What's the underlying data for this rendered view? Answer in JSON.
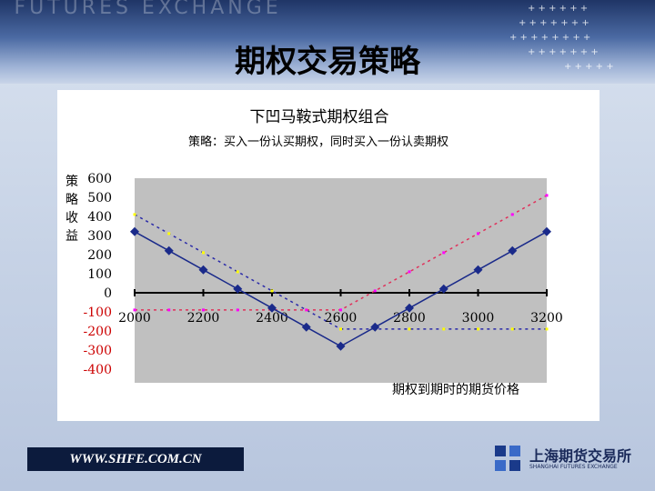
{
  "slide": {
    "banner_text": "I FUTURES EXCHANGE",
    "title": "期权交易策略",
    "footer_url": "WWW.SHFE.COM.CN",
    "logo_text": "上海期货交易所",
    "logo_subtext": "SHANGHAI FUTURES EXCHANGE"
  },
  "chart_data": {
    "type": "line",
    "title": "下凹马鞍式期权组合",
    "subtitle": "策略：买入一份认买期权，同时买入一份认卖期权",
    "ylabel": "策略收益",
    "xlabel": "期权到期时的期货价格",
    "xlim": [
      2000,
      3200
    ],
    "ylim": [
      -400,
      600
    ],
    "x_ticks": [
      2000,
      2200,
      2400,
      2600,
      2800,
      3000,
      3200
    ],
    "y_ticks": [
      600,
      500,
      400,
      300,
      200,
      100,
      0,
      -100,
      -200,
      -300,
      -400
    ],
    "grid": false,
    "legend": "none",
    "colors": {
      "plot_bg": "#c0c0c0",
      "combo": "#1a2a8a",
      "put": "#2a2aa8",
      "call": "#e0305a",
      "put_marker": "#ffff00",
      "call_marker": "#ff00ff",
      "negative_tick": "#cc0000"
    },
    "series": [
      {
        "key": "combo",
        "x": [
          2000,
          2100,
          2200,
          2300,
          2400,
          2500,
          2600,
          2700,
          2800,
          2900,
          3000,
          3100,
          3200
        ],
        "y": [
          320,
          220,
          120,
          20,
          -80,
          -180,
          -280,
          -180,
          -80,
          20,
          120,
          220,
          320
        ]
      },
      {
        "key": "put",
        "x": [
          2000,
          2100,
          2200,
          2300,
          2400,
          2500,
          2600,
          2700,
          2800,
          2900,
          3000,
          3100,
          3200
        ],
        "y": [
          410,
          310,
          210,
          110,
          10,
          -90,
          -190,
          -190,
          -190,
          -190,
          -190,
          -190,
          -190
        ]
      },
      {
        "key": "call",
        "x": [
          2000,
          2100,
          2200,
          2300,
          2400,
          2500,
          2600,
          2700,
          2800,
          2900,
          3000,
          3100,
          3200
        ],
        "y": [
          -90,
          -90,
          -90,
          -90,
          -90,
          -90,
          -90,
          10,
          110,
          210,
          310,
          410,
          510
        ]
      }
    ]
  }
}
